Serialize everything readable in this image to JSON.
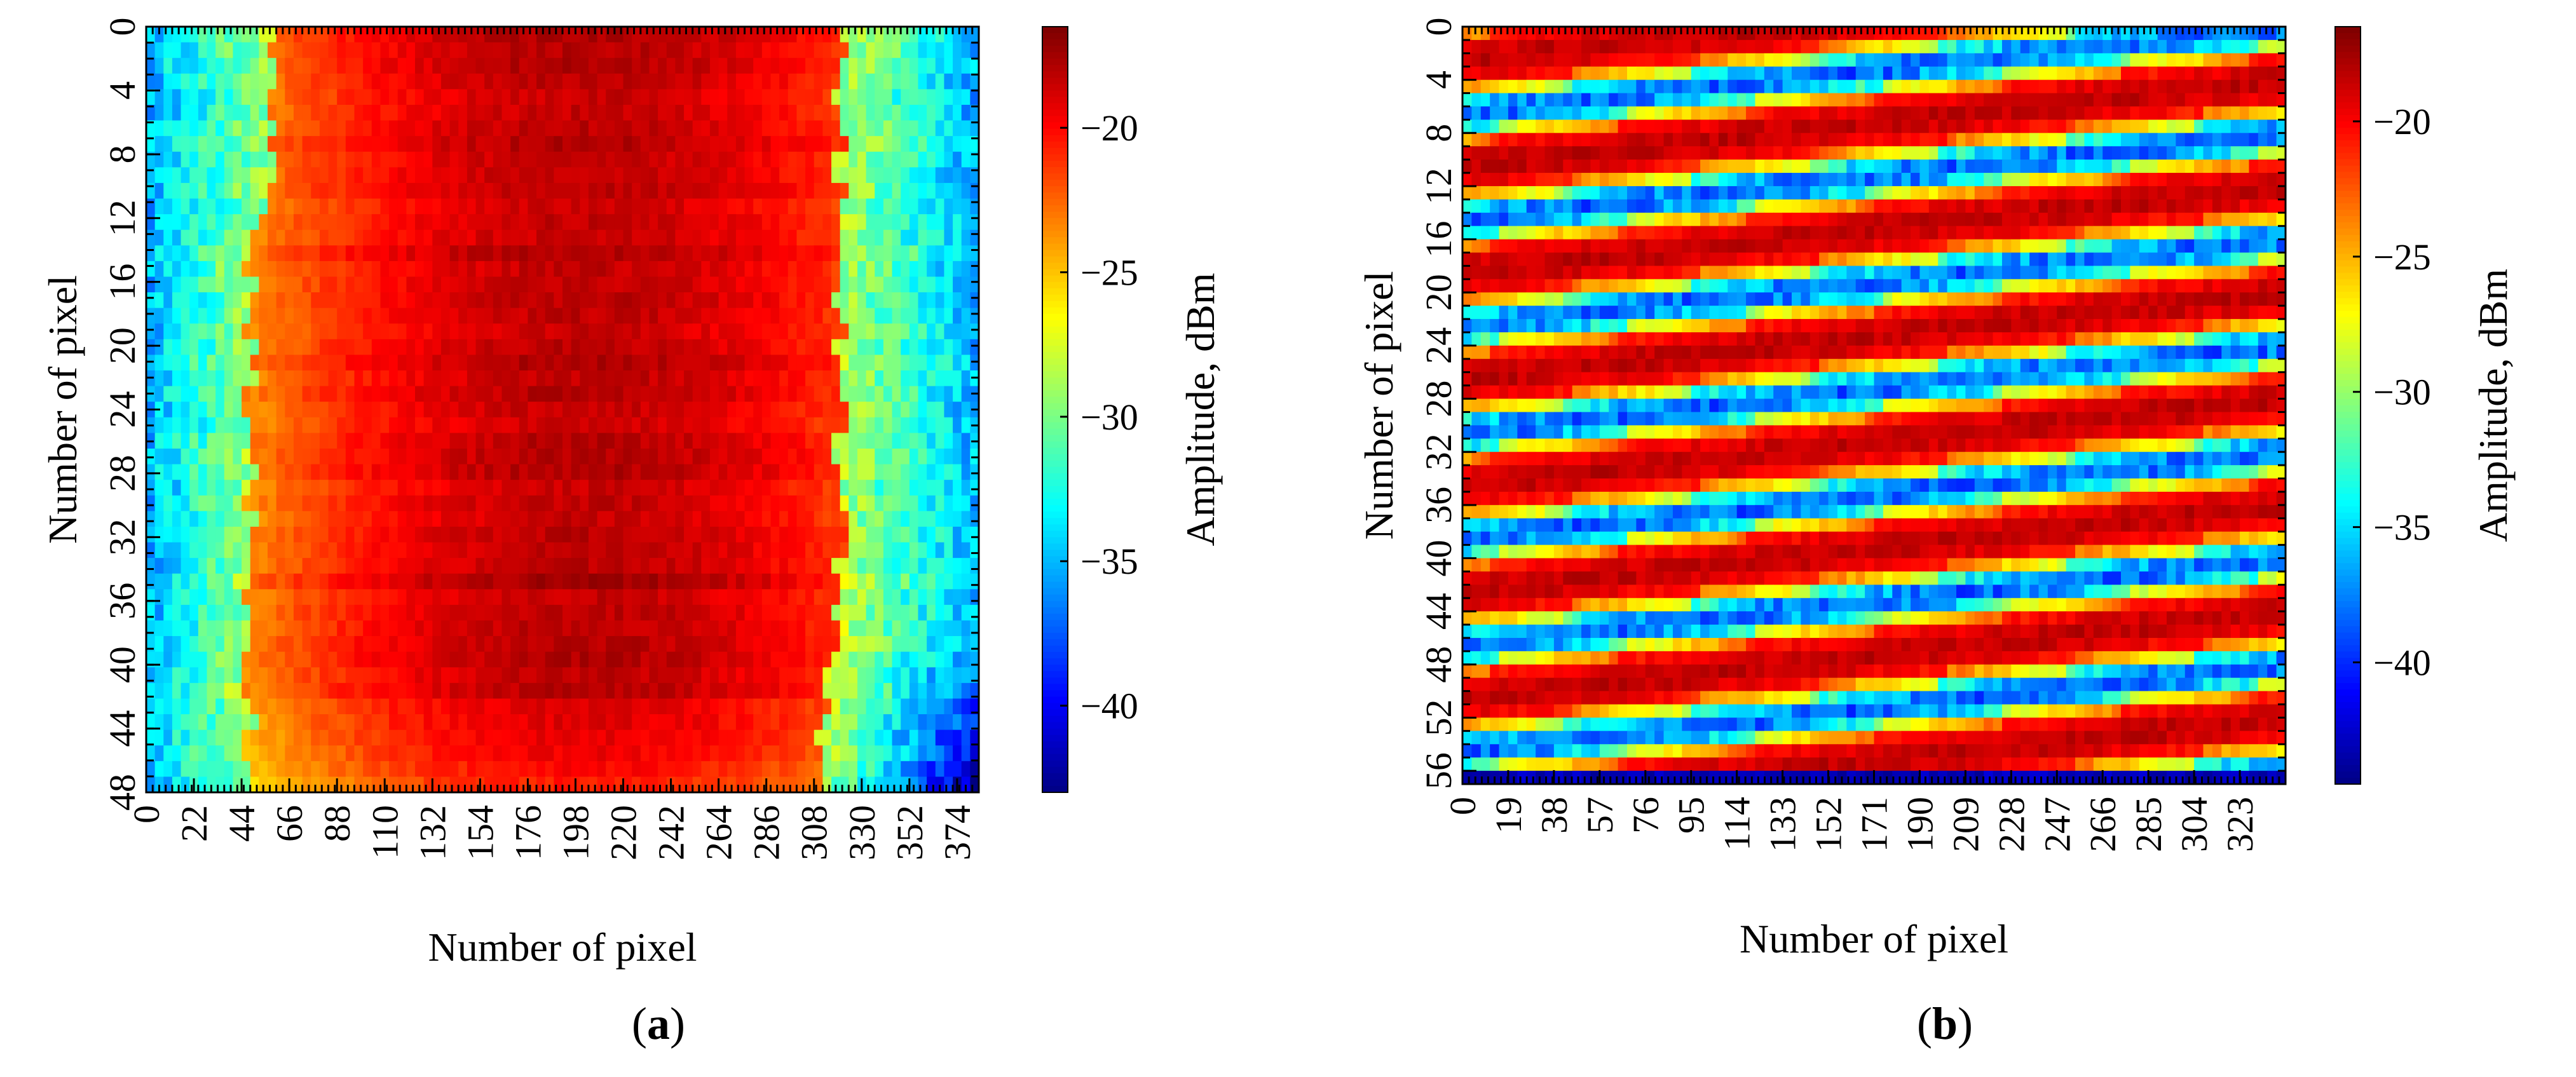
{
  "chart_data": [
    {
      "type": "heatmap",
      "panel_label": "a",
      "title": "",
      "xlabel": "Number of pixel",
      "ylabel": "Number of pixel",
      "x_range": [
        0,
        384
      ],
      "y_range": [
        0,
        48
      ],
      "x_ticks": [
        0,
        22,
        44,
        66,
        88,
        110,
        132,
        154,
        176,
        198,
        220,
        242,
        264,
        286,
        308,
        330,
        352,
        374
      ],
      "y_ticks": [
        0,
        4,
        8,
        12,
        16,
        20,
        24,
        28,
        32,
        36,
        40,
        44,
        48
      ],
      "colorbar": {
        "label": "Amplitude, dBm",
        "range": [
          -43,
          -16.5
        ],
        "ticks": [
          -20,
          -25,
          -30,
          -35,
          -40
        ],
        "tick_labels": [
          "−20",
          "−25",
          "−30",
          "−35",
          "−40"
        ],
        "colormap": "jet"
      },
      "pattern": "Central band of strong signal (about −18 to −21 dBm) between x≈44 and x≈320, strongest near x≈176–220; edges weak (−28 to −42 dBm), weakest in the lower-right corner"
    },
    {
      "type": "heatmap",
      "panel_label": "b",
      "title": "",
      "xlabel": "Number of pixel",
      "ylabel": "Number of pixel",
      "x_range": [
        0,
        342
      ],
      "y_range": [
        0,
        57
      ],
      "x_ticks": [
        0,
        19,
        38,
        57,
        76,
        95,
        114,
        133,
        152,
        171,
        190,
        209,
        228,
        247,
        266,
        285,
        304,
        323
      ],
      "y_ticks": [
        0,
        4,
        8,
        12,
        16,
        20,
        24,
        28,
        32,
        36,
        40,
        44,
        48,
        52,
        56
      ],
      "colorbar": {
        "label": "Amplitude, dBm",
        "range": [
          -44.5,
          -16.5
        ],
        "ticks": [
          -20,
          -25,
          -30,
          -35,
          -40
        ],
        "tick_labels": [
          "−20",
          "−25",
          "−30",
          "−35",
          "−40"
        ],
        "colormap": "jet"
      },
      "pattern": "Diagonal stripes descending left to right: alternating strong (about −18 dBm) and weak (about −30 to −38 dBm) bands with a period of about 8 rows; very weak row (about −43 dBm) along the bottom edge"
    }
  ],
  "captions": [
    {
      "open": "(",
      "letter": "a",
      "close": ")"
    },
    {
      "open": "(",
      "letter": "b",
      "close": ")"
    }
  ]
}
